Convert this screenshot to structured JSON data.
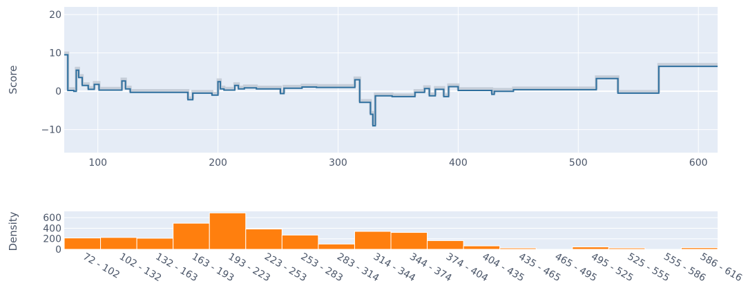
{
  "chart_data": [
    {
      "type": "line",
      "ylabel": "Score",
      "xlabel": "",
      "xlim": [
        72,
        616
      ],
      "ylim": [
        -16,
        22
      ],
      "xticks": [
        100,
        200,
        300,
        400,
        500,
        600
      ],
      "yticks": [
        20,
        10,
        0,
        -10
      ],
      "ytick_labels": [
        "20",
        "10",
        "0",
        "−10"
      ],
      "grid": true,
      "colors": {
        "line": "#2e6f9e",
        "band": "#b8c0cc",
        "plot_bg": "#e5ecf6",
        "grid": "#ffffff"
      },
      "series": [
        {
          "x": [
            72,
            75,
            75,
            80,
            80,
            82,
            82,
            84,
            84,
            87,
            87,
            92,
            92,
            97,
            97,
            101,
            101,
            120,
            120,
            123,
            123,
            127,
            127,
            175,
            175,
            179,
            179,
            195,
            195,
            200,
            200,
            202,
            202,
            205,
            205,
            214,
            214,
            217,
            217,
            222,
            222,
            232,
            232,
            252,
            252,
            255,
            255,
            270,
            270,
            282,
            282,
            314,
            314,
            318,
            318,
            327,
            327,
            329,
            329,
            331,
            331,
            345,
            345,
            364,
            364,
            372,
            372,
            376,
            376,
            381,
            381,
            388,
            388,
            392,
            392,
            400,
            400,
            428,
            428,
            430,
            430,
            446,
            446,
            515,
            515,
            533,
            533,
            567,
            567,
            616
          ],
          "y": [
            9.5,
            9.5,
            0.2,
            0.2,
            0,
            0,
            5.5,
            5.5,
            3.6,
            3.6,
            1.5,
            1.5,
            0.5,
            0.5,
            1.8,
            1.8,
            0.3,
            0.3,
            2.7,
            2.7,
            0.6,
            0.6,
            -0.3,
            -0.3,
            -2.2,
            -2.2,
            -0.5,
            -0.5,
            -1.0,
            -1.0,
            2.5,
            2.5,
            0.6,
            0.6,
            0.3,
            0.3,
            1.5,
            1.5,
            0.6,
            0.6,
            0.9,
            0.9,
            0.6,
            0.6,
            -0.6,
            -0.6,
            0.8,
            0.8,
            1.1,
            1.1,
            1.0,
            1.0,
            3.0,
            3.0,
            -2.9,
            -2.9,
            -6.0,
            -6.0,
            -9.0,
            -9.0,
            -1.2,
            -1.2,
            -1.4,
            -1.4,
            -0.3,
            -0.3,
            0.7,
            0.7,
            -1.2,
            -1.2,
            0.5,
            0.5,
            -1.4,
            -1.4,
            1.2,
            1.2,
            0.2,
            0.2,
            -0.8,
            -0.8,
            0.0,
            0.0,
            0.4,
            0.4,
            3.3,
            3.3,
            -0.5,
            -0.5,
            6.5,
            6.5
          ]
        }
      ]
    },
    {
      "type": "bar",
      "ylabel": "Density",
      "xlabel": "",
      "ylim": [
        0,
        720
      ],
      "yticks": [
        0,
        200,
        400,
        600
      ],
      "ytick_labels": [
        "0",
        "200",
        "400",
        "600"
      ],
      "grid": true,
      "colors": {
        "bar": "#ff7f0e",
        "bar_edge": "#ffffff",
        "plot_bg": "#e5ecf6"
      },
      "categories": [
        "72 - 102",
        "102 - 132",
        "132 - 163",
        "163 - 193",
        "193 - 223",
        "223 - 253",
        "253 - 283",
        "283 - 314",
        "314 - 344",
        "344 - 374",
        "374 - 404",
        "404 - 435",
        "435 - 465",
        "465 - 495",
        "495 - 525",
        "525 - 555",
        "555 - 586",
        "586 - 616"
      ],
      "values": [
        215,
        225,
        210,
        495,
        690,
        385,
        270,
        100,
        340,
        320,
        165,
        65,
        25,
        0,
        45,
        25,
        0,
        30
      ]
    }
  ]
}
